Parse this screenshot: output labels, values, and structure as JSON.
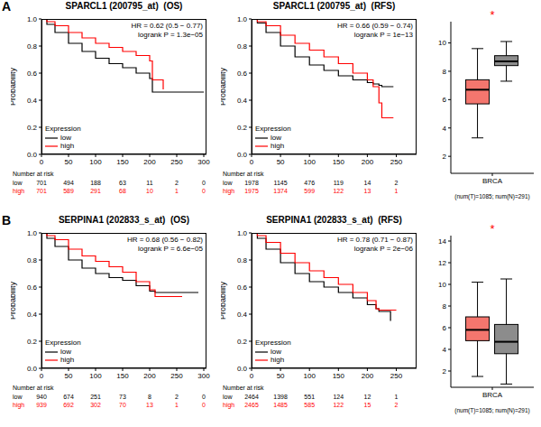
{
  "panel_labels": [
    "A",
    "B"
  ],
  "chart_data": [
    {
      "type": "line",
      "title": "SPARCL1 (200795_at)",
      "subtitle": "(OS)",
      "ylabel": "Probability",
      "line_style": "step",
      "legend": "lower left",
      "legend_title": "Expression",
      "annotations": [
        "HR = 0.62 (0.5 − 0.77)",
        "logrank P = 1.3e−05"
      ],
      "xlim": [
        0,
        305
      ],
      "xticks": [
        0,
        50,
        100,
        150,
        200,
        250,
        300
      ],
      "ylim": [
        0,
        1
      ],
      "yticks": [
        {
          "value": 0,
          "label": "0.0"
        },
        0.2,
        0.4,
        0.6,
        0.8,
        {
          "value": 1,
          "label": "1.0"
        }
      ],
      "x": [
        0,
        10,
        25,
        50,
        75,
        100,
        125,
        150,
        175,
        200,
        205,
        225,
        300
      ],
      "series": [
        {
          "name": "low",
          "color": "#000000",
          "values": [
            1,
            0.96,
            0.9,
            0.82,
            0.76,
            0.71,
            0.67,
            0.64,
            0.6,
            0.56,
            0.46,
            0.46,
            0.46
          ]
        },
        {
          "name": "high",
          "color": "#ff0000",
          "values": [
            1,
            0.98,
            0.95,
            0.9,
            0.86,
            0.82,
            0.79,
            0.76,
            0.73,
            0.69,
            0.55,
            0.48,
            null
          ]
        }
      ],
      "number_at_risk": {
        "label": "Number at risk",
        "x": [
          0,
          50,
          100,
          150,
          200,
          250,
          300
        ],
        "rows": [
          {
            "name": "low",
            "values": [
              701,
              494,
              188,
              63,
              11,
              2,
              0
            ]
          },
          {
            "name": "high",
            "values": [
              701,
              589,
              291,
              68,
              10,
              1,
              0
            ]
          }
        ]
      }
    },
    {
      "type": "line",
      "title": "SPARCL1 (200795_at)",
      "subtitle": "(RFS)",
      "ylabel": "Probability",
      "line_style": "step",
      "legend": "lower left",
      "legend_title": "Expression",
      "annotations": [
        "HR = 0.66 (0.59 − 0.74)",
        "logrank P = 1e−13"
      ],
      "xlim": [
        0,
        285
      ],
      "xticks": [
        0,
        50,
        100,
        150,
        200,
        250
      ],
      "ylim": [
        0,
        1
      ],
      "yticks": [
        {
          "value": 0,
          "label": "0.0"
        },
        0.2,
        0.4,
        0.6,
        0.8,
        {
          "value": 1,
          "label": "1.0"
        }
      ],
      "x": [
        0,
        10,
        25,
        50,
        75,
        100,
        125,
        150,
        175,
        200,
        210,
        220,
        225,
        245,
        270
      ],
      "series": [
        {
          "name": "low",
          "color": "#000000",
          "values": [
            1,
            0.97,
            0.9,
            0.8,
            0.72,
            0.66,
            0.62,
            0.58,
            0.55,
            0.53,
            0.52,
            0.51,
            0.5,
            0.5,
            null
          ]
        },
        {
          "name": "high",
          "color": "#ff0000",
          "values": [
            1,
            0.98,
            0.95,
            0.88,
            0.82,
            0.77,
            0.72,
            0.67,
            0.6,
            0.55,
            0.5,
            0.38,
            0.27,
            0.27,
            null
          ]
        }
      ],
      "number_at_risk": {
        "label": "Number at risk",
        "x": [
          0,
          50,
          100,
          150,
          200,
          250
        ],
        "rows": [
          {
            "name": "low",
            "values": [
              1978,
              1145,
              476,
              119,
              14,
              2
            ]
          },
          {
            "name": "high",
            "values": [
              1975,
              1374,
              599,
              122,
              13,
              1
            ]
          }
        ]
      }
    },
    {
      "type": "box",
      "categories": [
        "BRCA"
      ],
      "xlabel": "(num(T)=1085; num(N)=291)",
      "ylim": [
        0.8,
        11.5
      ],
      "yticks": [
        2,
        4,
        6,
        8,
        10
      ],
      "annotations": [
        {
          "text": "*",
          "color": "#ff0000"
        }
      ],
      "boxes": [
        {
          "color": "#f4766e",
          "whisker_low": 3.3,
          "q1": 5.7,
          "median": 6.7,
          "q3": 7.4,
          "whisker_high": 9.6
        },
        {
          "color": "#8c8c8c",
          "whisker_low": 7.3,
          "q1": 8.4,
          "median": 8.7,
          "q3": 9.1,
          "whisker_high": 10.1
        }
      ]
    },
    {
      "type": "line",
      "title": "SERPINA1 (202833_s_at)",
      "subtitle": "(OS)",
      "ylabel": "Probability",
      "line_style": "step",
      "legend": "lower left",
      "legend_title": "Expression",
      "annotations": [
        "HR = 0.68 (0.56 − 0.82)",
        "logrank P = 6.6e−05"
      ],
      "xlim": [
        0,
        305
      ],
      "xticks": [
        0,
        50,
        100,
        150,
        200,
        250,
        300
      ],
      "ylim": [
        0,
        1
      ],
      "yticks": [
        {
          "value": 0,
          "label": "0.0"
        },
        0.2,
        0.4,
        0.6,
        0.8,
        {
          "value": 1,
          "label": "1.0"
        }
      ],
      "x": [
        0,
        10,
        25,
        50,
        75,
        100,
        125,
        150,
        175,
        200,
        210,
        260,
        290,
        300
      ],
      "series": [
        {
          "name": "low",
          "color": "#000000",
          "values": [
            1,
            0.96,
            0.9,
            0.8,
            0.74,
            0.7,
            0.67,
            0.65,
            0.61,
            0.57,
            0.56,
            0.56,
            0.56,
            null
          ]
        },
        {
          "name": "high",
          "color": "#ff0000",
          "values": [
            1,
            0.98,
            0.95,
            0.88,
            0.83,
            0.79,
            0.75,
            0.71,
            0.64,
            0.58,
            0.53,
            0.53,
            null,
            null
          ]
        }
      ],
      "number_at_risk": {
        "label": "Number at risk",
        "x": [
          0,
          50,
          100,
          150,
          200,
          250,
          300
        ],
        "rows": [
          {
            "name": "low",
            "values": [
              940,
              674,
              251,
              73,
              8,
              2,
              0
            ]
          },
          {
            "name": "high",
            "values": [
              939,
              692,
              302,
              70,
              13,
              1,
              0
            ]
          }
        ]
      }
    },
    {
      "type": "line",
      "title": "SERPINA1 (202833_s_at)",
      "subtitle": "(RFS)",
      "ylabel": "Probability",
      "line_style": "step",
      "legend": "lower left",
      "legend_title": "Expression",
      "annotations": [
        "HR = 0.78 (0.71 − 0.87)",
        "logrank P = 2e−06"
      ],
      "xlim": [
        0,
        285
      ],
      "xticks": [
        0,
        50,
        100,
        150,
        200,
        250
      ],
      "ylim": [
        0,
        1
      ],
      "yticks": [
        {
          "value": 0,
          "label": "0.0"
        },
        0.2,
        0.4,
        0.6,
        0.8,
        {
          "value": 1,
          "label": "1.0"
        }
      ],
      "x": [
        0,
        10,
        25,
        50,
        75,
        100,
        125,
        150,
        175,
        200,
        215,
        220,
        240,
        250
      ],
      "series": [
        {
          "name": "low",
          "color": "#000000",
          "values": [
            1,
            0.96,
            0.88,
            0.78,
            0.7,
            0.64,
            0.6,
            0.56,
            0.52,
            0.47,
            0.44,
            0.42,
            0.35,
            null
          ]
        },
        {
          "name": "high",
          "color": "#ff0000",
          "values": [
            1,
            0.98,
            0.93,
            0.85,
            0.78,
            0.72,
            0.67,
            0.62,
            0.56,
            0.5,
            0.44,
            0.43,
            0.43,
            0.43
          ]
        }
      ],
      "number_at_risk": {
        "label": "Number at risk",
        "x": [
          0,
          50,
          100,
          150,
          200,
          250
        ],
        "rows": [
          {
            "name": "low",
            "values": [
              2464,
              1398,
              551,
              124,
              12,
              1
            ]
          },
          {
            "name": "high",
            "values": [
              2465,
              1485,
              585,
              122,
              15,
              2
            ]
          }
        ]
      }
    },
    {
      "type": "box",
      "categories": [
        "BRCA"
      ],
      "xlabel": "(num(T)=1085; num(N)=291)",
      "ylim": [
        0.5,
        14.5
      ],
      "yticks": [
        2,
        4,
        6,
        8,
        10,
        12,
        14
      ],
      "annotations": [
        {
          "text": "*",
          "color": "#ff0000"
        }
      ],
      "boxes": [
        {
          "color": "#f4766e",
          "whisker_low": 1.5,
          "q1": 4.8,
          "median": 5.8,
          "q3": 7.0,
          "whisker_high": 10.2
        },
        {
          "color": "#8c8c8c",
          "whisker_low": 0.8,
          "q1": 3.6,
          "median": 4.7,
          "q3": 6.3,
          "whisker_high": 10.5
        }
      ]
    }
  ]
}
